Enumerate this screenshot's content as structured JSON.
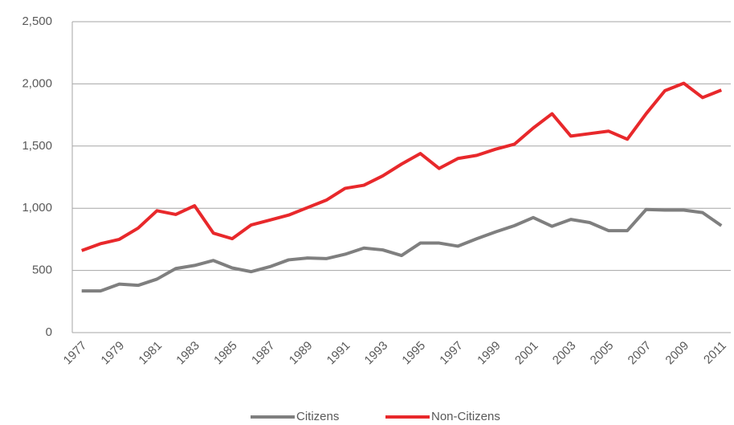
{
  "chart_data": {
    "type": "line",
    "categories": [
      "1977",
      null,
      "1979",
      null,
      "1981",
      null,
      "1983",
      null,
      "1985",
      null,
      "1987",
      null,
      "1989",
      null,
      "1991",
      null,
      "1993",
      null,
      "1995",
      null,
      "1997",
      null,
      "1999",
      null,
      "2001",
      null,
      "2003",
      null,
      "2005",
      null,
      "2007",
      null,
      "2009",
      null,
      "2011"
    ],
    "series": [
      {
        "name": "Citizens",
        "color": "#7f7f7f",
        "values": [
          335,
          335,
          390,
          380,
          430,
          515,
          540,
          580,
          520,
          490,
          530,
          585,
          600,
          595,
          630,
          680,
          665,
          620,
          720,
          720,
          695,
          755,
          810,
          860,
          925,
          855,
          910,
          885,
          820,
          820,
          990,
          985,
          985,
          965,
          860
        ]
      },
      {
        "name": "Non-Citizens",
        "color": "#e8282b",
        "values": [
          660,
          715,
          750,
          840,
          980,
          950,
          1020,
          800,
          755,
          865,
          905,
          945,
          1005,
          1065,
          1160,
          1185,
          1260,
          1355,
          1440,
          1320,
          1400,
          1425,
          1475,
          1515,
          1645,
          1760,
          1580,
          1600,
          1620,
          1555,
          1760,
          1945,
          2005,
          1890,
          1950
        ]
      }
    ],
    "ylim": [
      0,
      2500
    ],
    "yticks": [
      0,
      500,
      {
        "value": 1000,
        "label": "1,000"
      },
      {
        "value": 1500,
        "label": "1,500"
      },
      {
        "value": 2000,
        "label": "2,000"
      },
      {
        "value": 2500,
        "label": "2,500"
      }
    ],
    "grid": true,
    "legend": "bottom"
  }
}
